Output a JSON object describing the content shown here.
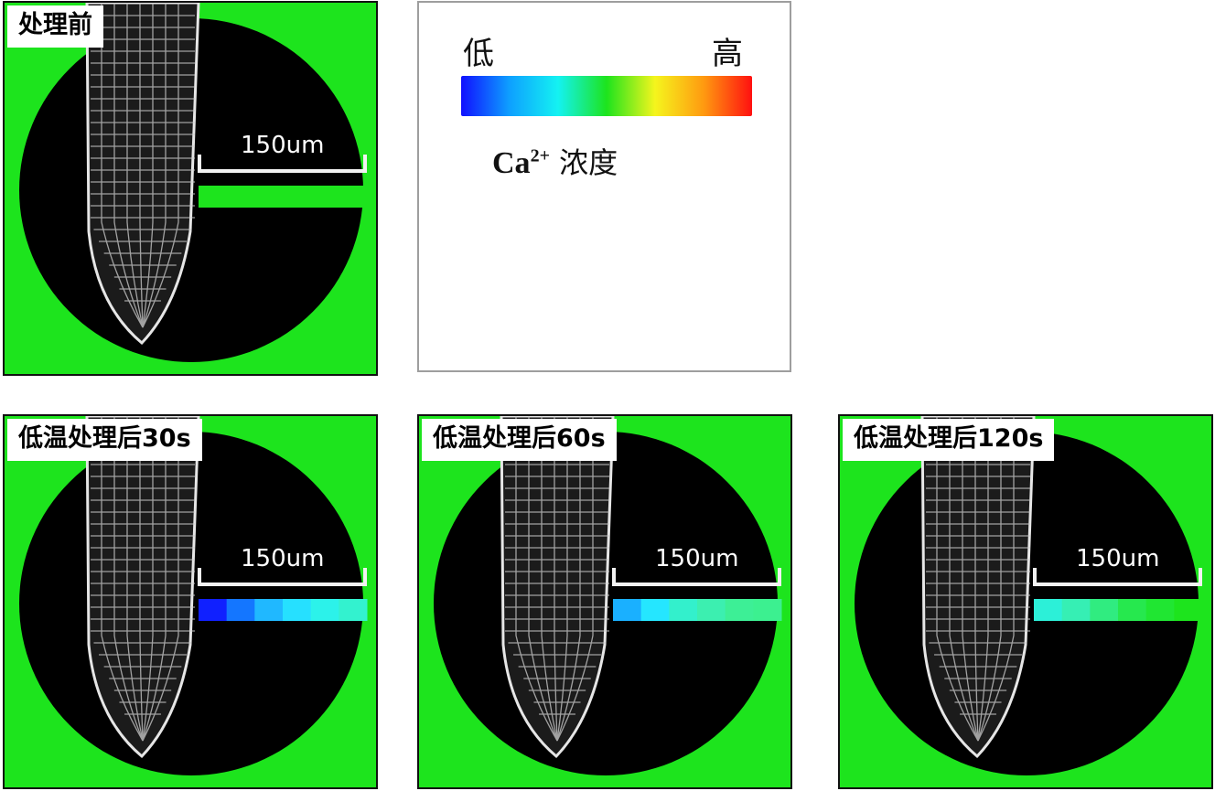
{
  "panels": [
    {
      "label": "处理前",
      "scale_label": "150um",
      "band_colors": [
        "#1de41d"
      ]
    },
    {
      "label": "低温处理后30s",
      "scale_label": "150um",
      "band_colors": [
        "#1020ff",
        "#1476ff",
        "#20b8ff",
        "#26e0ff",
        "#2cf2ea",
        "#33f2cf"
      ]
    },
    {
      "label": "低温处理后60s",
      "scale_label": "150um",
      "band_colors": [
        "#1ab0ff",
        "#25e6ff",
        "#33f0cc",
        "#3cefb0",
        "#3def96",
        "#3cf090"
      ]
    },
    {
      "label": "低温处理后120s",
      "scale_label": "150um",
      "band_colors": [
        "#2cf0d8",
        "#36efb4",
        "#30ec80",
        "#26e84e",
        "#20e632",
        "#1de41d"
      ]
    }
  ],
  "legend": {
    "low_label": "低",
    "high_label": "高",
    "caption_chem": "Ca",
    "caption_sup": "2+",
    "caption_text": "浓度",
    "gradient_colors": [
      "#1010ff",
      "#0ea0ff",
      "#14f2f2",
      "#1de41d",
      "#f5f51d",
      "#ff9a10",
      "#ff1010"
    ]
  }
}
